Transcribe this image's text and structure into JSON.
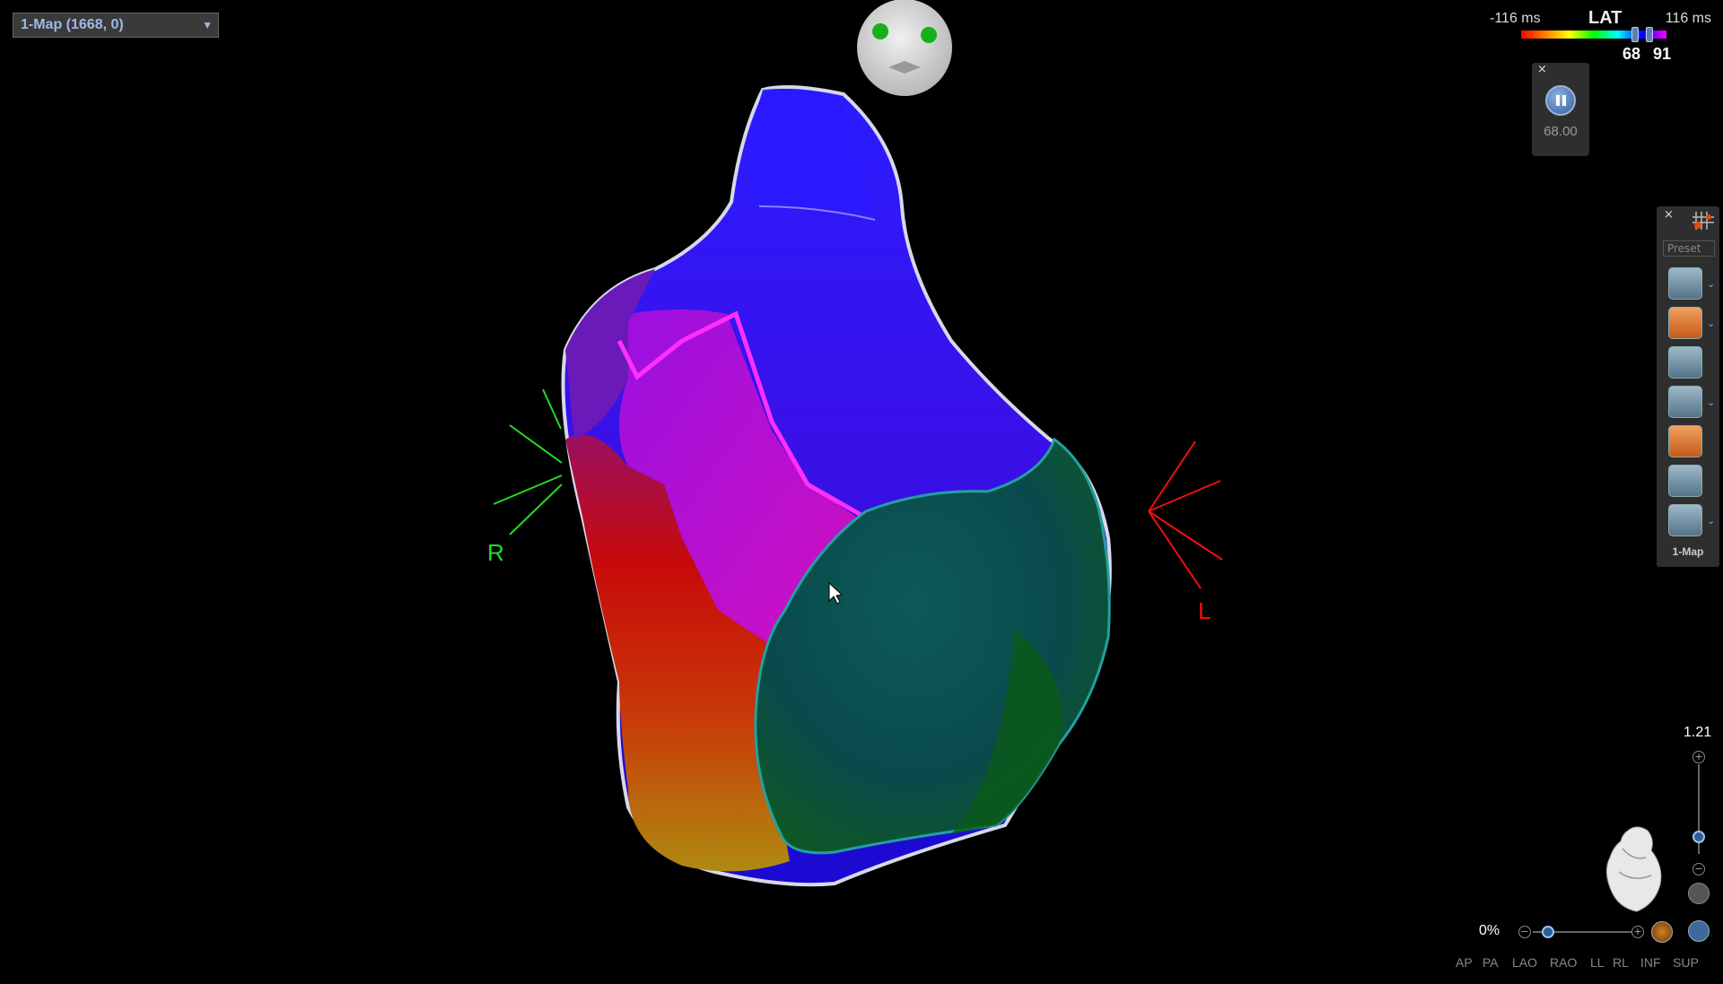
{
  "map_selector": {
    "value": "1-Map (1668, 0)"
  },
  "lat": {
    "min_label": "-116 ms",
    "title": "LAT",
    "max_label": "116 ms",
    "low_value": "68",
    "high_value": "91"
  },
  "playback": {
    "close": "×",
    "value": "68.00"
  },
  "toolbar": {
    "close": "×",
    "preset": "Preset",
    "footer": "1-Map",
    "chevron": "⌄"
  },
  "orientation": {
    "right_label": "R",
    "left_label": "L"
  },
  "zoom": {
    "value": "1.21",
    "plus": "+",
    "minus": "−"
  },
  "opacity": {
    "value": "0%",
    "plus": "+",
    "minus": "−"
  },
  "views": [
    "AP",
    "PA",
    "LAO",
    "RAO",
    "LL",
    "RL",
    "INF",
    "SUP"
  ],
  "colors": {
    "right_marker": "#22dd22",
    "left_marker": "#ee1111"
  }
}
